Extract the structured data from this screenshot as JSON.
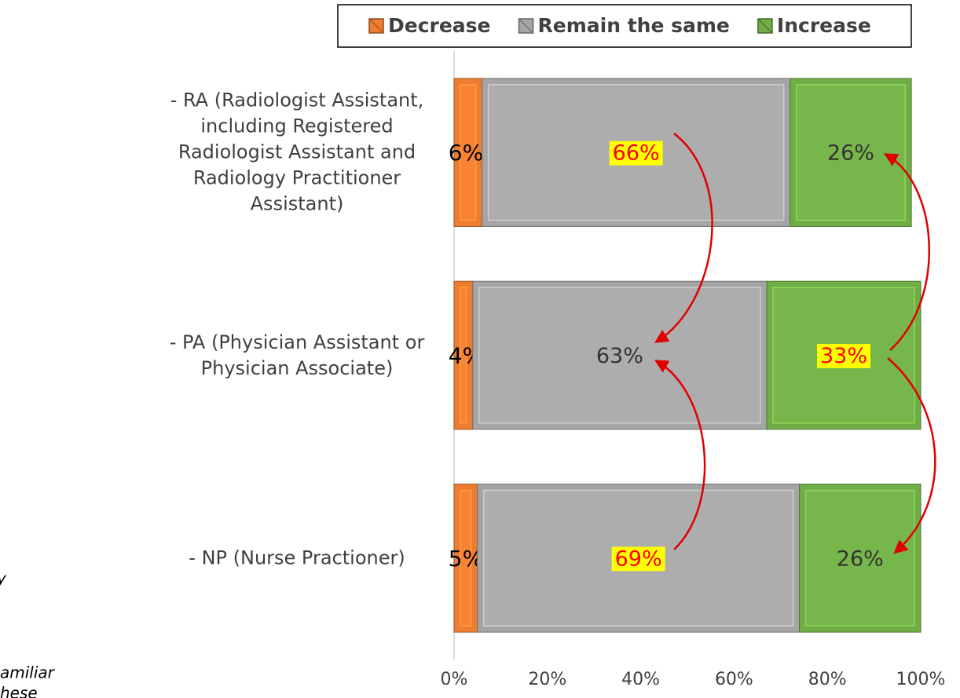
{
  "chart_data": {
    "type": "stacked-bar-horizontal",
    "categories": [
      "- RA (Radiologist Assistant, including Registered Radiologist Assistant and Radiology Practitioner Assistant)",
      "- PA (Physician Assistant or Physician Associate)",
      "- NP (Nurse Practioner)"
    ],
    "series": [
      {
        "name": "Decrease",
        "color": "#ed7d31",
        "values": [
          6,
          4,
          5
        ],
        "value_labels": [
          "6%",
          "4%",
          "5%"
        ],
        "highlighted": [
          false,
          false,
          false
        ]
      },
      {
        "name": "Remain the same",
        "color": "#a5a5a5",
        "values": [
          66,
          63,
          69
        ],
        "value_labels": [
          "66%",
          "63%",
          "69%"
        ],
        "highlighted": [
          true,
          false,
          true
        ]
      },
      {
        "name": "Increase",
        "color": "#70ad47",
        "values": [
          26,
          33,
          26
        ],
        "value_labels": [
          "26%",
          "33%",
          "26%"
        ],
        "highlighted": [
          false,
          true,
          false
        ]
      }
    ],
    "xlim": [
      0,
      100
    ],
    "xticks": [
      {
        "value": 0,
        "label": "0%"
      },
      {
        "value": 20,
        "label": "20%"
      },
      {
        "value": 40,
        "label": "40%"
      },
      {
        "value": 60,
        "label": "60%"
      },
      {
        "value": 80,
        "label": "80%"
      },
      {
        "value": 100,
        "label": "100%"
      }
    ],
    "grid": false,
    "legend": "top",
    "side_notes": [
      "y",
      "amiliar",
      "hese"
    ]
  }
}
